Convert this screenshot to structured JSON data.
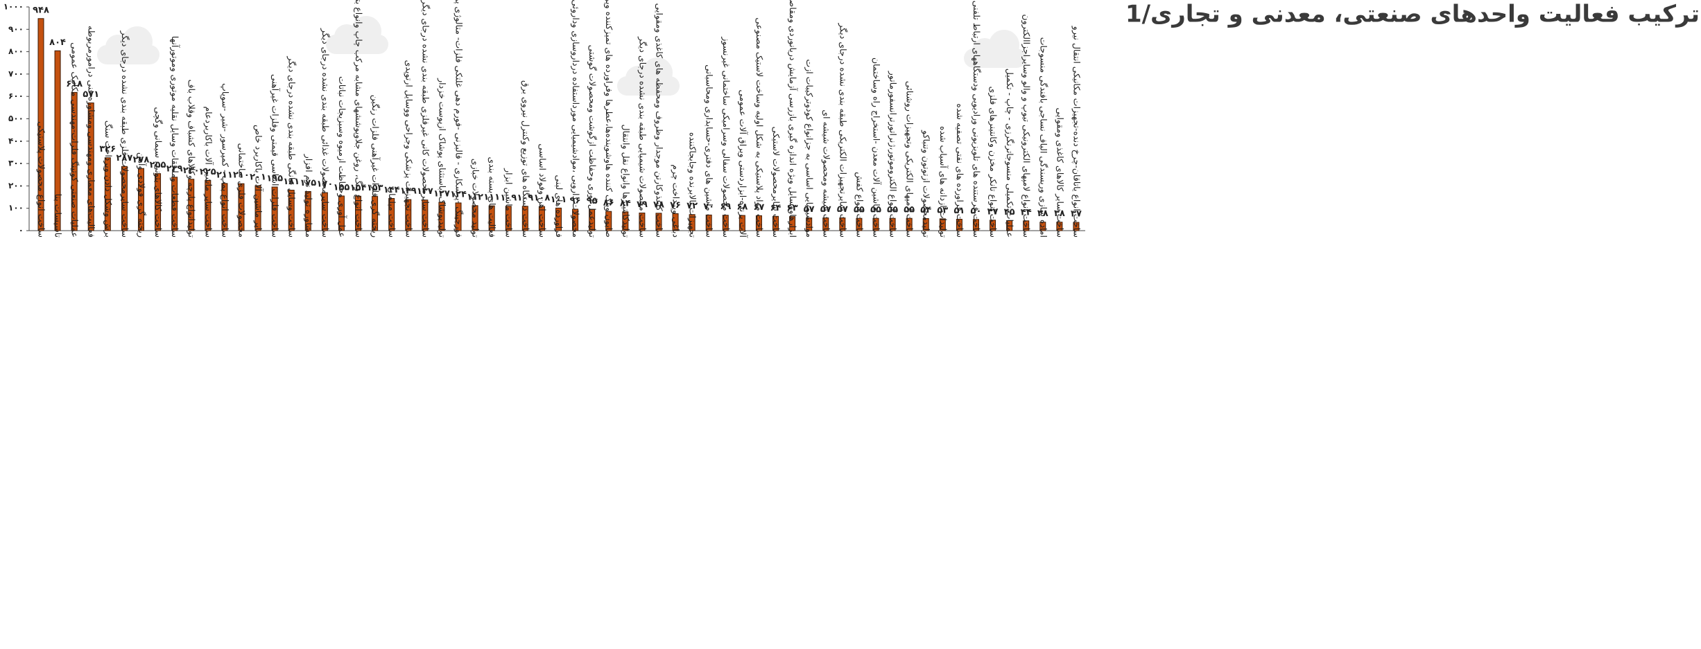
{
  "chart_data": {
    "type": "bar",
    "title": "ترکیب فعالیت واحدهای صنعتی، معدنی و تجاری/1",
    "color": "#c4510f",
    "ylim": [
      0,
      1000
    ],
    "yticks": [
      {
        "value": 0,
        "label": "۰"
      },
      {
        "value": 100,
        "label": "۱۰۰"
      },
      {
        "value": 200,
        "label": "۲۰۰"
      },
      {
        "value": 300,
        "label": "۳۰۰"
      },
      {
        "value": 400,
        "label": "۴۰۰"
      },
      {
        "value": 500,
        "label": "۵۰۰"
      },
      {
        "value": 600,
        "label": "۶۰۰"
      },
      {
        "value": 700,
        "label": "۷۰۰"
      },
      {
        "value": 800,
        "label": "۸۰۰"
      },
      {
        "value": 900,
        "label": "۹۰۰"
      },
      {
        "value": 1000,
        "label": "۱۰۰۰"
      }
    ],
    "categories": [
      "ساخت انواع محصولات پلاستیکی",
      "تاسیسات بنا",
      "عملیات صنعتی کوتینگ فلزات-مهندسی مکانیک عمومی",
      "فعالیت‌های معماری ومهندسی ومشاوره فنی درامورمربوطه",
      "برش وشکل دادن وپرداخت سنگ",
      "ساخت سایرمحصولات فلزی طبقه بندی نشده درجای دیگر",
      "ریخته گری فولادی وآهن",
      "ساخت کالاهای بتونی، سیمانی وگچی",
      "ساخت قطعات وملحقات وسایل نقلیه موتوری وموتورآنها",
      "تولیدانواع پارچه وکالاهای کشباف وقلاب باف",
      "ساخت سایر ماشین آلات باکاربردعام",
      "ساخت انواع پمپ - کمپرسور -شیر -سوپاپ",
      "محصولات فلزی ساختمانی",
      "سایر ماشین آلات باکاربرد خاص",
      "ساخت فلزات اساسی قیمتی وفلزات غیرآهنی",
      "ساخت وسایل خانگی طبقه بندی نشده درجای دیگر",
      "مشاوره تولید نرم افزار",
      "ساخت سایرمحصولات غذائی طبقه بندی نشده درجای دیگر",
      "عمل آوری وحفاظت ازمیوه وسبزیجات نباتات",
      "ساخت انواع رنگ، روغن جلاوپوششهای مشابه مرکب چاپ وانواع بتونه",
      "ریخته گری فلزات غیرآهنی فلزات رنگین",
      "ساخت مبلمان",
      "ساخت تجهیزات پزشکی وجراحی ووسایل ارتوپدی",
      "ساخت سایرمحصولات کانی غیرفلزی طبقه بندی نشده درجای دیگر",
      "تولیدپوشاک -باستثنای پوشاک ازپوست خزدار",
      "فورجینگ -پرسکاری - قالبزنی -فورم دهی غلتکی فلزات- متالوژی پودر",
      "تولید محصولات خبازی",
      "فعالیت های بسته بندی",
      "ساخت ماشین ابزار",
      "ساخت دستگاه های توزیع وکنترل نیروی برق",
      "ساخت اهن وفولاد اساسی",
      "فراورده های لبنی",
      "محصولات دارویی ،موادشیمیایی مورداستفاده درداروسازی وداروئی",
      "تولیدعمل آوری وحفاظت ازگوشت ومحصولات گوشتی",
      "صابون وپاک کننده هاوشوینده‌ها،عطرها وفراورده های تمیزکننده وپرداخت",
      "تولیدکانتینرها وانواع نقل وانتقال",
      "ساخت محصولات شیمیایی طبقه بندی نشده درجای دیگر",
      "ساخت کاغذوکارتن موجدار وظروف ومحفظه های کاغذی ومقوایی",
      "دباغی وپرداخت چرم",
      "تجهیزات بالابرنده وجابجاکننده",
      "ساخت ماشین های دفتری-حسابداری ومحاسباتی",
      "ساخت محصولات سفالی وسرامیکی ساختمانی غیرنسوز",
      "آلات برنده-ابزاردستی ویراق آلات عمومی",
      "ساخت مواد پلاستیکی به شکل اولیه وساخت لاستیک مصنوعی",
      "ساخت سایرمحصولات لاستیکی",
      "ابزارهاووسایل ویژه اندازه گیری بازرسی آزمایش دریانوردی ومقاصد",
      "موادشیمیایی اساسی به جزانواع کودوترکیبات ازت",
      "ساخت شیشه ومحصولات شیشه ای",
      "ساخت سایرتجهیزات الکتریکی طبقه بندی نشده درجای دیگر",
      "ساخت انواع کفش",
      "ساخت ماشین آلات معدن -استخراج راه وساختمان",
      "ساخت انواع الکتروموتور،ژنراتورترانسفورماتور",
      "ساخت لامپهای الکتریکی وتجهیزات روشنائی",
      "تولیدمحصولات ازتوتون وتنباکو",
      "تولیدات ازدانه های آسیاب شده",
      "ساخت فراورده های نفتی تصفیه شده",
      "ساخت فرستنده های تلویزیونی ورادیویی ودستگاههای ارتباط تلفنی",
      "ساخت انواع تانکر مخزن وکانتینرهای فلزی",
      "عملیات تکمیلی منسوجاترنگرزی - چاپ - تکمیل",
      "ساخت انواع لامپهای الکترونیکی تیوپ و والو وسایراجزاالکترون",
      "اماده سازی وریسندگی الیاف نساجی بافندگی منسوجات",
      "ساخت سایر کالاهای کاغذی ومقوایی",
      "ساخت انواع یاتاقان-چرخ دنده-تجهیزات مکانیکی انتقال نیرو"
    ],
    "values": [
      948,
      804,
      618,
      571,
      326,
      287,
      278,
      255,
      239,
      230,
      225,
      211,
      210,
      201,
      195,
      181,
      175,
      170,
      155,
      154,
      153,
      144,
      139,
      137,
      127,
      124,
      112,
      111,
      109,
      109,
      108,
      101,
      96,
      95,
      86,
      84,
      79,
      78,
      76,
      72,
      70,
      69,
      68,
      67,
      64,
      63,
      57,
      57,
      57,
      55,
      55,
      55,
      55,
      54,
      53,
      51,
      50,
      47,
      45,
      44,
      38,
      38,
      37
    ],
    "value_labels": [
      "۹۴۸",
      "۸۰۴",
      "۶۱۸",
      "۵۷۱",
      "۳۲۶",
      "۲۸۷",
      "۲۷۸",
      "۲۵۵",
      "۲۳۹",
      "۲۳۰",
      "۲۲۵",
      "۲۱۱",
      "۲۱۰",
      "۲۰۱",
      "۱۹۵",
      "۱۸۱",
      "۱۷۵",
      "۱۷۰",
      "۱۵۵",
      "۱۵۴",
      "۱۵۳",
      "۱۴۴",
      "۱۳۹",
      "۱۳۷",
      "۱۲۷",
      "۱۲۴",
      "۱۱۲",
      "۱۱۱",
      "۱۰۹",
      "۱۰۹",
      "۱۰۸",
      "۱۰۱",
      "۹۶",
      "۹۵",
      "۸۶",
      "۸۴",
      "۷۹",
      "۷۸",
      "۷۶",
      "۷۲",
      "۷۰",
      "۶۹",
      "۶۸",
      "۶۷",
      "۶۴",
      "۶۳",
      "۵۷",
      "۵۷",
      "۵۷",
      "۵۵",
      "۵۵",
      "۵۵",
      "۵۵",
      "۵۴",
      "۵۳",
      "۵۱",
      "۵۰",
      "۴۷",
      "۴۵",
      "۴۴",
      "۳۸",
      "۳۸",
      "۳۷"
    ]
  }
}
